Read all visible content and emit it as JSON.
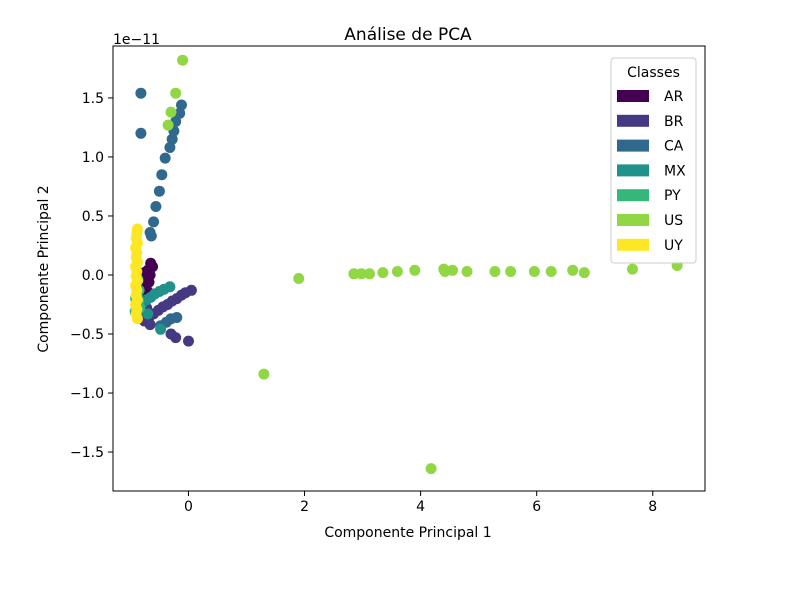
{
  "chart_data": {
    "type": "scatter",
    "title": "Análise de PCA",
    "xlabel": "Componente Principal 1",
    "ylabel": "Componente Principal 2",
    "y_offset_label": "1e−11",
    "xlim": [
      -1.3,
      8.9
    ],
    "ylim": [
      -1.83,
      1.94
    ],
    "x_ticks": [
      0,
      2,
      4,
      6,
      8
    ],
    "x_tick_labels": [
      "0",
      "2",
      "4",
      "6",
      "8"
    ],
    "y_ticks": [
      -1.5,
      -1.0,
      -0.5,
      0.0,
      0.5,
      1.0,
      1.5
    ],
    "y_tick_labels": [
      "−1.5",
      "−1.0",
      "−0.5",
      "0.0",
      "0.5",
      "1.0",
      "1.5"
    ],
    "grid": false,
    "legend": {
      "title": "Classes",
      "placement": "top-right"
    },
    "series": [
      {
        "name": "AR",
        "color": "#440154",
        "points": [
          [
            -0.65,
            0.1
          ],
          [
            -0.62,
            0.07
          ],
          [
            -0.7,
            0.04
          ],
          [
            -0.66,
            0.0
          ],
          [
            -0.72,
            -0.03
          ],
          [
            -0.68,
            -0.06
          ],
          [
            -0.75,
            -0.1
          ],
          [
            -0.7,
            -0.14
          ],
          [
            -0.78,
            -0.18
          ],
          [
            -0.74,
            -0.22
          ],
          [
            -0.8,
            -0.26
          ],
          [
            -0.76,
            0.02
          ],
          [
            -0.82,
            -0.08
          ]
        ]
      },
      {
        "name": "BR",
        "color": "#443983",
        "points": [
          [
            0.0,
            -0.56
          ],
          [
            -0.22,
            -0.53
          ],
          [
            0.05,
            -0.13
          ],
          [
            -0.05,
            -0.15
          ],
          [
            -0.12,
            -0.17
          ],
          [
            -0.2,
            -0.2
          ],
          [
            -0.28,
            -0.22
          ],
          [
            -0.36,
            -0.25
          ],
          [
            -0.44,
            -0.27
          ],
          [
            -0.52,
            -0.3
          ],
          [
            -0.6,
            -0.33
          ],
          [
            -0.68,
            -0.36
          ],
          [
            -0.76,
            -0.39
          ],
          [
            -0.66,
            -0.42
          ],
          [
            -0.3,
            -0.5
          ],
          [
            -0.75,
            -0.31
          ],
          [
            -0.72,
            -0.28
          ]
        ]
      },
      {
        "name": "CA",
        "color": "#31688e",
        "points": [
          [
            -0.82,
            1.54
          ],
          [
            -0.82,
            1.2
          ],
          [
            -0.12,
            1.44
          ],
          [
            -0.15,
            1.37
          ],
          [
            -0.22,
            1.3
          ],
          [
            -0.25,
            1.22
          ],
          [
            -0.28,
            1.15
          ],
          [
            -0.32,
            1.08
          ],
          [
            -0.4,
            0.99
          ],
          [
            -0.46,
            0.85
          ],
          [
            -0.5,
            0.71
          ],
          [
            -0.56,
            0.58
          ],
          [
            -0.6,
            0.45
          ],
          [
            -0.64,
            0.33
          ],
          [
            -0.66,
            0.36
          ],
          [
            -0.2,
            -0.36
          ],
          [
            -0.3,
            -0.37
          ],
          [
            -0.38,
            -0.4
          ],
          [
            -0.48,
            -0.43
          ]
        ]
      },
      {
        "name": "MX",
        "color": "#21918c",
        "points": [
          [
            -0.32,
            -0.1
          ],
          [
            -0.42,
            -0.12
          ],
          [
            -0.5,
            -0.14
          ],
          [
            -0.58,
            -0.16
          ],
          [
            -0.65,
            -0.19
          ],
          [
            -0.72,
            -0.21
          ],
          [
            -0.8,
            -0.24
          ],
          [
            -0.86,
            -0.27
          ],
          [
            -0.48,
            -0.46
          ],
          [
            -0.7,
            -0.33
          ]
        ]
      },
      {
        "name": "PY",
        "color": "#35b779",
        "points": [
          [
            -0.9,
            -0.1
          ],
          [
            -0.88,
            -0.16
          ],
          [
            -0.86,
            -0.22
          ],
          [
            -0.84,
            -0.28
          ],
          [
            -0.92,
            -0.31
          ],
          [
            -0.87,
            -0.04
          ],
          [
            -0.91,
            -0.2
          ],
          [
            -0.85,
            -0.13
          ]
        ]
      },
      {
        "name": "US",
        "color": "#90d743",
        "points": [
          [
            -0.1,
            1.82
          ],
          [
            -0.22,
            1.54
          ],
          [
            -0.3,
            1.38
          ],
          [
            -0.35,
            1.27
          ],
          [
            1.3,
            -0.84
          ],
          [
            1.9,
            -0.03
          ],
          [
            2.85,
            0.01
          ],
          [
            2.98,
            0.01
          ],
          [
            3.12,
            0.01
          ],
          [
            3.35,
            0.02
          ],
          [
            3.6,
            0.03
          ],
          [
            3.9,
            0.04
          ],
          [
            4.4,
            0.05
          ],
          [
            4.42,
            0.03
          ],
          [
            4.55,
            0.04
          ],
          [
            4.8,
            0.03
          ],
          [
            5.28,
            0.03
          ],
          [
            5.55,
            0.03
          ],
          [
            5.96,
            0.03
          ],
          [
            6.25,
            0.03
          ],
          [
            6.62,
            0.04
          ],
          [
            6.82,
            0.02
          ],
          [
            7.65,
            0.05
          ],
          [
            8.42,
            0.08
          ],
          [
            4.18,
            -1.64
          ]
        ]
      },
      {
        "name": "UY",
        "color": "#fde725",
        "points": [
          [
            -0.88,
            0.39
          ],
          [
            -0.89,
            0.35
          ],
          [
            -0.9,
            0.31
          ],
          [
            -0.88,
            0.27
          ],
          [
            -0.91,
            0.23
          ],
          [
            -0.89,
            0.19
          ],
          [
            -0.9,
            0.15
          ],
          [
            -0.88,
            0.11
          ],
          [
            -0.91,
            0.07
          ],
          [
            -0.89,
            0.03
          ],
          [
            -0.9,
            -0.01
          ],
          [
            -0.88,
            -0.05
          ],
          [
            -0.91,
            -0.09
          ],
          [
            -0.89,
            -0.13
          ],
          [
            -0.9,
            -0.17
          ],
          [
            -0.88,
            -0.21
          ],
          [
            -0.91,
            -0.25
          ],
          [
            -0.89,
            -0.29
          ],
          [
            -0.9,
            -0.33
          ],
          [
            -0.88,
            -0.37
          ]
        ]
      }
    ]
  }
}
